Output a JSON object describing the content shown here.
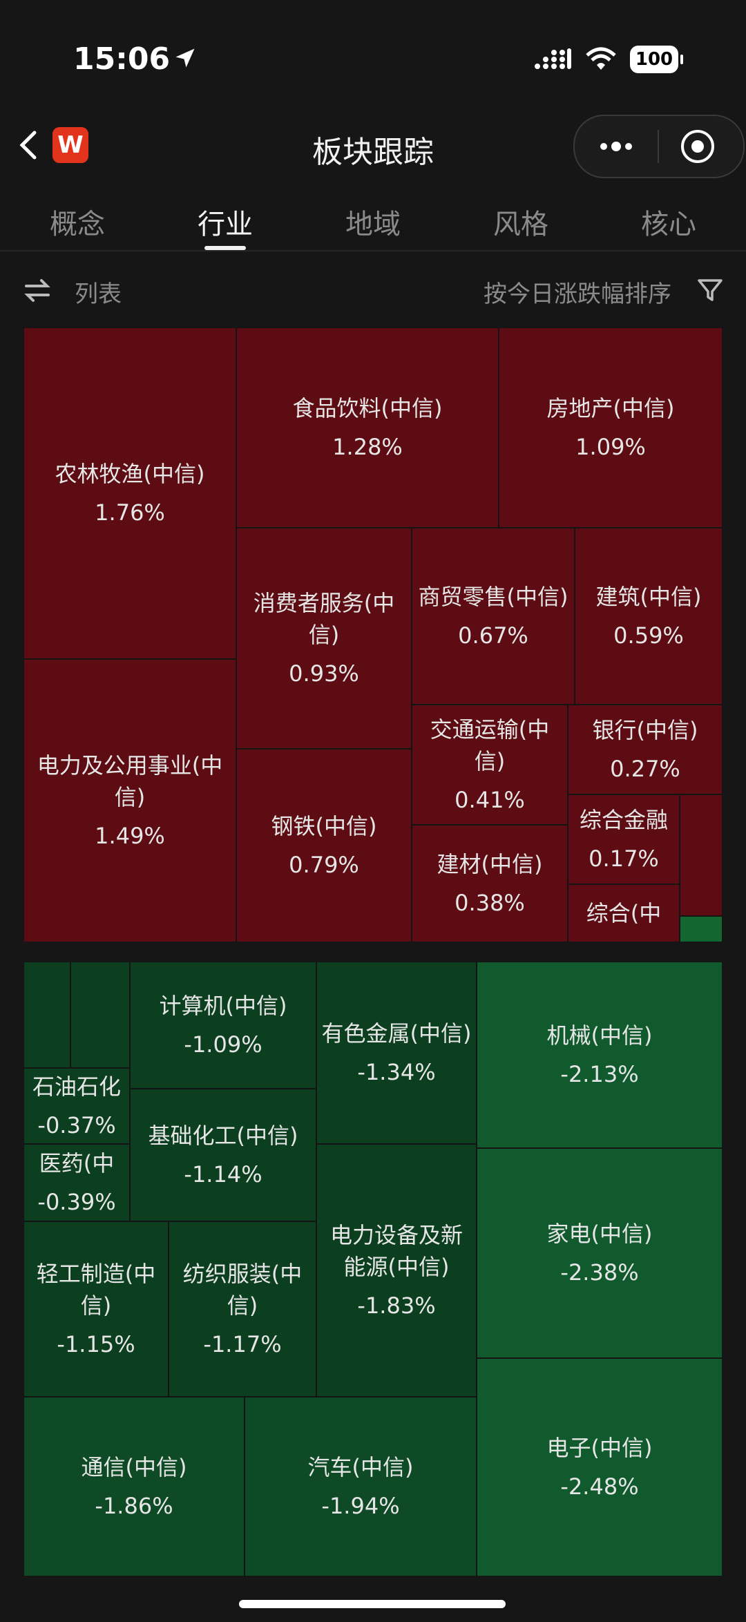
{
  "status_bar": {
    "time": "15:06",
    "battery": "100"
  },
  "nav": {
    "title": "板块跟踪",
    "logo_letter": "W"
  },
  "tabs": [
    {
      "label": "概念",
      "active": false
    },
    {
      "label": "行业",
      "active": true
    },
    {
      "label": "地域",
      "active": false
    },
    {
      "label": "风格",
      "active": false
    },
    {
      "label": "核心",
      "active": false
    }
  ],
  "toolbar": {
    "list_label": "列表",
    "sort_label": "按今日涨跌幅排序"
  },
  "colors": {
    "up": "#5c0c12",
    "down": "#0e4a25",
    "background": "#161616"
  },
  "sectors_up": [
    {
      "name": "农林牧渔(中信)",
      "change": "1.76%"
    },
    {
      "name": "食品饮料(中信)",
      "change": "1.28%"
    },
    {
      "name": "房地产(中信)",
      "change": "1.09%"
    },
    {
      "name": "电力及公用事业(中信)",
      "change": "1.49%"
    },
    {
      "name": "消费者服务(中信)",
      "change": "0.93%"
    },
    {
      "name": "商贸零售(中信)",
      "change": "0.67%"
    },
    {
      "name": "建筑(中信)",
      "change": "0.59%"
    },
    {
      "name": "钢铁(中信)",
      "change": "0.79%"
    },
    {
      "name": "交通运输(中信)",
      "change": "0.41%"
    },
    {
      "name": "银行(中信)",
      "change": "0.27%"
    },
    {
      "name": "综合金融",
      "change": "0.17%"
    },
    {
      "name": "建材(中信)",
      "change": "0.38%"
    },
    {
      "name": "综合(中",
      "change": ""
    }
  ],
  "sectors_down": [
    {
      "name": "计算机(中信)",
      "change": "-1.09%"
    },
    {
      "name": "有色金属(中信)",
      "change": "-1.34%"
    },
    {
      "name": "机械(中信)",
      "change": "-2.13%"
    },
    {
      "name": "石油石化",
      "change": "-0.37%"
    },
    {
      "name": "医药(中",
      "change": "-0.39%"
    },
    {
      "name": "基础化工(中信)",
      "change": "-1.14%"
    },
    {
      "name": "电力设备及新能源(中信)",
      "change": "-1.83%"
    },
    {
      "name": "家电(中信)",
      "change": "-2.38%"
    },
    {
      "name": "轻工制造(中信)",
      "change": "-1.15%"
    },
    {
      "name": "纺织服装(中信)",
      "change": "-1.17%"
    },
    {
      "name": "通信(中信)",
      "change": "-1.86%"
    },
    {
      "name": "汽车(中信)",
      "change": "-1.94%"
    },
    {
      "name": "电子(中信)",
      "change": "-2.48%"
    }
  ]
}
